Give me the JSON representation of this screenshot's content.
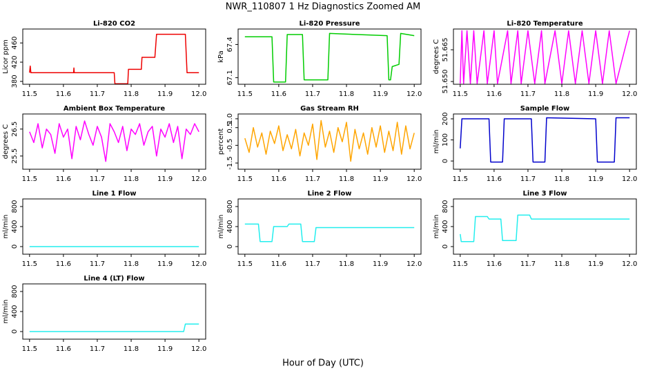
{
  "title": "NWR_110807  1 Hz Diagnostics Zoomed AM",
  "xlabel": "Hour of Day (UTC)",
  "chart_data": [
    {
      "type": "line",
      "title": "Li-820 CO2",
      "ylabel": "Licor ppm",
      "color": "#ee0000",
      "x": [
        11.5,
        11.502,
        11.504,
        11.63,
        11.631,
        11.632,
        11.75,
        11.752,
        11.79,
        11.792,
        11.83,
        11.832,
        11.87,
        11.875,
        11.96,
        11.965,
        12.0
      ],
      "values": [
        398,
        412,
        398,
        398,
        408,
        398,
        398,
        375,
        375,
        405,
        405,
        430,
        430,
        478,
        478,
        398,
        398
      ],
      "xlim": [
        11.48,
        12.02
      ],
      "xticks": [
        11.5,
        11.6,
        11.7,
        11.8,
        11.9,
        {
          "value": 12,
          "label": "12.0"
        }
      ],
      "ylim": [
        374,
        489
      ],
      "yticks": [
        380,
        420,
        460
      ]
    },
    {
      "type": "line",
      "title": "Li-820 Pressure",
      "ylabel": "kPa",
      "color": "#00cc00",
      "x": [
        11.5,
        11.58,
        11.585,
        11.62,
        11.625,
        11.67,
        11.675,
        11.745,
        11.75,
        11.92,
        11.925,
        11.93,
        11.935,
        11.955,
        11.96,
        12.0
      ],
      "values": [
        67.47,
        67.47,
        67.06,
        67.06,
        67.49,
        67.49,
        67.08,
        67.08,
        67.5,
        67.48,
        67.08,
        67.08,
        67.2,
        67.22,
        67.5,
        67.48
      ],
      "xlim": [
        11.48,
        12.02
      ],
      "xticks": [
        11.5,
        11.6,
        11.7,
        11.8,
        11.9,
        {
          "value": 12,
          "label": "12.0"
        }
      ],
      "ylim": [
        67.04,
        67.54
      ],
      "yticks": [
        67.1,
        67.4
      ]
    },
    {
      "type": "line",
      "title": "Li-820 Temperature",
      "ylabel": "degrees C",
      "color": "#ff00ff",
      "x": [
        11.5,
        11.505,
        11.51,
        11.52,
        11.53,
        11.54,
        11.55,
        11.57,
        11.58,
        11.6,
        11.61,
        11.64,
        11.65,
        11.67,
        11.68,
        11.7,
        11.72,
        11.74,
        11.75,
        11.78,
        11.8,
        11.82,
        11.84,
        11.86,
        11.88,
        11.9,
        11.92,
        11.94,
        11.96,
        12.0
      ],
      "values": [
        51.649,
        51.674,
        51.649,
        51.674,
        51.649,
        51.674,
        51.649,
        51.674,
        51.649,
        51.674,
        51.649,
        51.674,
        51.649,
        51.674,
        51.649,
        51.674,
        51.649,
        51.674,
        51.649,
        51.674,
        51.649,
        51.674,
        51.649,
        51.674,
        51.649,
        51.674,
        51.649,
        51.674,
        51.649,
        51.674
      ],
      "xlim": [
        11.48,
        12.02
      ],
      "xticks": [
        11.5,
        11.6,
        11.7,
        11.8,
        11.9,
        {
          "value": 12,
          "label": "12.0"
        }
      ],
      "ylim": [
        51.6487,
        51.6748
      ],
      "yticks": [
        {
          "value": 51.65,
          "label": "51.650"
        },
        51.665
      ]
    },
    {
      "type": "line",
      "title": "Ambient Box Temperature",
      "ylabel": "degrees C",
      "color": "#ff00ff",
      "x": [
        11.5,
        11.5125,
        11.525,
        11.5375,
        11.55,
        11.5625,
        11.575,
        11.5875,
        11.6,
        11.6125,
        11.625,
        11.6375,
        11.65,
        11.6625,
        11.675,
        11.6875,
        11.7,
        11.7125,
        11.725,
        11.7375,
        11.75,
        11.7625,
        11.775,
        11.7875,
        11.8,
        11.8125,
        11.825,
        11.8375,
        11.85,
        11.8625,
        11.875,
        11.8875,
        11.9,
        11.9125,
        11.925,
        11.9375,
        11.95,
        11.9625,
        11.975,
        11.9875,
        12.0
      ],
      "values": [
        26.4,
        26.0,
        26.7,
        25.8,
        26.5,
        26.3,
        25.6,
        26.7,
        26.2,
        26.5,
        25.4,
        26.6,
        26.1,
        26.8,
        26.3,
        25.9,
        26.6,
        26.2,
        25.3,
        26.7,
        26.4,
        26.0,
        26.6,
        25.7,
        26.5,
        26.3,
        26.7,
        25.9,
        26.4,
        26.6,
        25.5,
        26.5,
        26.2,
        26.7,
        26.0,
        26.6,
        25.4,
        26.5,
        26.3,
        26.7,
        26.4
      ],
      "xlim": [
        11.48,
        12.02
      ],
      "xticks": [
        11.5,
        11.6,
        11.7,
        11.8,
        11.9,
        {
          "value": 12,
          "label": "12.0"
        }
      ],
      "ylim": [
        25.01,
        27.06
      ],
      "yticks": [
        25.5,
        26.5
      ]
    },
    {
      "type": "line",
      "title": "Gas Stream RH",
      "ylabel": "percent",
      "color": "#ffa500",
      "x": [
        11.5,
        11.5125,
        11.525,
        11.5375,
        11.55,
        11.5625,
        11.575,
        11.5875,
        11.6,
        11.6125,
        11.625,
        11.6375,
        11.65,
        11.6625,
        11.675,
        11.6875,
        11.7,
        11.7125,
        11.725,
        11.7375,
        11.75,
        11.7625,
        11.775,
        11.7875,
        11.8,
        11.8125,
        11.825,
        11.8375,
        11.85,
        11.8625,
        11.875,
        11.8875,
        11.9,
        11.9125,
        11.925,
        11.9375,
        11.95,
        11.9625,
        11.975,
        11.9875,
        12.0
      ],
      "values": [
        -0.1,
        -0.9,
        0.5,
        -0.6,
        0.2,
        -1.0,
        0.3,
        -0.4,
        0.6,
        -0.8,
        0.1,
        -0.7,
        0.4,
        -1.1,
        0.2,
        -0.5,
        0.7,
        -1.3,
        0.9,
        -0.6,
        0.3,
        -0.9,
        0.5,
        -0.3,
        0.8,
        -1.4,
        0.4,
        -0.7,
        0.2,
        -1.0,
        0.5,
        -0.6,
        0.6,
        -0.9,
        0.3,
        -0.8,
        0.8,
        -1.0,
        0.6,
        -0.7,
        0.2
      ],
      "xlim": [
        11.48,
        12.02
      ],
      "xticks": [
        11.5,
        11.6,
        11.7,
        11.8,
        11.9,
        {
          "value": 12,
          "label": "12.0"
        }
      ],
      "ylim": [
        -1.85,
        1.27
      ],
      "yticks": [
        -1.5,
        -0.5,
        0.5,
        {
          "value": 1,
          "label": "1.0"
        }
      ]
    },
    {
      "type": "line",
      "title": "Sample Flow",
      "ylabel": "ml/min",
      "color": "#0000cc",
      "x": [
        11.5,
        11.505,
        11.585,
        11.59,
        11.625,
        11.63,
        11.71,
        11.715,
        11.75,
        11.755,
        11.9,
        11.905,
        11.955,
        11.96,
        12.0
      ],
      "values": [
        60,
        200,
        200,
        -5,
        -5,
        200,
        200,
        -5,
        -5,
        205,
        200,
        -5,
        -5,
        205,
        205
      ],
      "xlim": [
        11.48,
        12.02
      ],
      "xticks": [
        11.5,
        11.6,
        11.7,
        11.8,
        11.9,
        {
          "value": 12,
          "label": "12.0"
        }
      ],
      "ylim": [
        -39,
        223
      ],
      "yticks": [
        0,
        100,
        200
      ]
    },
    {
      "type": "line",
      "title": "Line 1 Flow",
      "ylabel": "ml/min",
      "color": "#22eeee",
      "x": [
        11.5,
        12.0
      ],
      "values": [
        0,
        0
      ],
      "xlim": [
        11.48,
        12.02
      ],
      "xticks": [
        11.5,
        11.6,
        11.7,
        11.8,
        11.9,
        {
          "value": 12,
          "label": "12.0"
        }
      ],
      "ylim": [
        -152,
        952
      ],
      "yticks": [
        0,
        400,
        800
      ]
    },
    {
      "type": "line",
      "title": "Line 2 Flow",
      "ylabel": "ml/min",
      "color": "#22eeee",
      "x": [
        11.5,
        11.54,
        11.545,
        11.58,
        11.585,
        11.625,
        11.63,
        11.665,
        11.67,
        11.705,
        11.71,
        12.0
      ],
      "values": [
        450,
        450,
        100,
        100,
        400,
        400,
        450,
        450,
        100,
        100,
        380,
        380
      ],
      "xlim": [
        11.48,
        12.02
      ],
      "xticks": [
        11.5,
        11.6,
        11.7,
        11.8,
        11.9,
        {
          "value": 12,
          "label": "12.0"
        }
      ],
      "ylim": [
        -152,
        952
      ],
      "yticks": [
        0,
        400,
        800
      ]
    },
    {
      "type": "line",
      "title": "Line 3 Flow",
      "ylabel": "ml/min",
      "color": "#22eeee",
      "x": [
        11.5,
        11.503,
        11.54,
        11.545,
        11.58,
        11.585,
        11.62,
        11.625,
        11.665,
        11.67,
        11.705,
        11.71,
        12.0
      ],
      "values": [
        250,
        100,
        100,
        600,
        600,
        550,
        550,
        120,
        120,
        630,
        630,
        550,
        550
      ],
      "xlim": [
        11.48,
        12.02
      ],
      "xticks": [
        11.5,
        11.6,
        11.7,
        11.8,
        11.9,
        {
          "value": 12,
          "label": "12.0"
        }
      ],
      "ylim": [
        -152,
        952
      ],
      "yticks": [
        0,
        400,
        800
      ]
    },
    {
      "type": "line",
      "title": "Line 4 (LT) Flow",
      "ylabel": "ml/min",
      "color": "#22eeee",
      "x": [
        11.5,
        11.955,
        11.96,
        12.0
      ],
      "values": [
        0,
        0,
        150,
        150
      ],
      "xlim": [
        11.48,
        12.02
      ],
      "xticks": [
        11.5,
        11.6,
        11.7,
        11.8,
        11.9,
        {
          "value": 12,
          "label": "12.0"
        }
      ],
      "ylim": [
        -152,
        952
      ],
      "yticks": [
        0,
        400,
        800
      ]
    }
  ]
}
